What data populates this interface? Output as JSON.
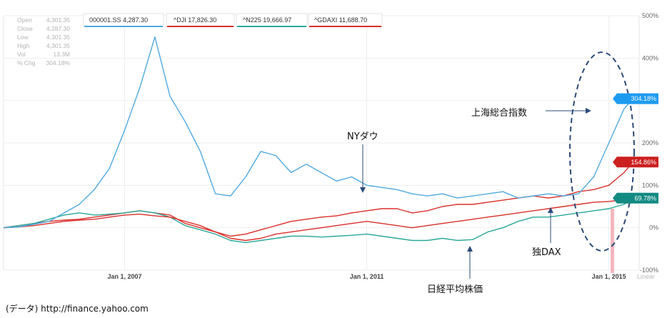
{
  "stats": [
    {
      "label": "Open",
      "value": "4,301.35"
    },
    {
      "label": "Close",
      "value": "4,287.30"
    },
    {
      "label": "Low",
      "value": "4,301.35"
    },
    {
      "label": "High",
      "value": "4,301.35"
    },
    {
      "label": "Vol",
      "value": "13.3M"
    },
    {
      "label": "% Chg",
      "value": "304.18%"
    }
  ],
  "legend": [
    {
      "text": "000001.SS 4,287.30",
      "color": "#4fa9e0"
    },
    {
      "text": "^DJI 17,826.30",
      "color": "#d9302a"
    },
    {
      "text": "^N225 19,666.97",
      "color": "#2aa89a"
    },
    {
      "text": "^GDAXI 11,688.70",
      "color": "#d9302a"
    }
  ],
  "scale_label": "Linear",
  "annotations": {
    "shanghai": "上海総合指数",
    "nydow": "NYダウ",
    "dax": "独DAX",
    "nikkei": "日経平均株価"
  },
  "source": "(データ) http://finance.yahoo.com",
  "colors": {
    "shanghai": "#4fa9e0",
    "dji": "#d9302a",
    "n225": "#2aa89a",
    "gdaxi": "#d9302a",
    "marker": "#f4b6be",
    "ellipse": "#2b4a7a"
  },
  "chart_data": {
    "type": "line",
    "x": [
      2005.0,
      2005.25,
      2005.5,
      2005.75,
      2006.0,
      2006.25,
      2006.5,
      2006.75,
      2007.0,
      2007.25,
      2007.5,
      2007.75,
      2008.0,
      2008.25,
      2008.5,
      2008.75,
      2009.0,
      2009.25,
      2009.5,
      2009.75,
      2010.0,
      2010.25,
      2010.5,
      2010.75,
      2011.0,
      2011.25,
      2011.5,
      2011.75,
      2012.0,
      2012.25,
      2012.5,
      2012.75,
      2013.0,
      2013.25,
      2013.5,
      2013.75,
      2014.0,
      2014.25,
      2014.5,
      2014.75,
      2015.0,
      2015.25,
      2015.4
    ],
    "xticks": [
      "Jan 1, 2007",
      "Jan 1, 2011",
      "Jan 1, 2015"
    ],
    "xtick_values": [
      2007.0,
      2011.0,
      2015.0
    ],
    "yticks": [
      "500%",
      "400%",
      "300%",
      "200%",
      "100%",
      "0%",
      "-100%"
    ],
    "ytick_values": [
      500,
      400,
      300,
      200,
      100,
      0,
      -100
    ],
    "ylim": [
      -100,
      500
    ],
    "grid": true,
    "legend_position": "top",
    "series": [
      {
        "name": "000001.SS",
        "end_label": "304.18%",
        "values": [
          0,
          2,
          8,
          15,
          35,
          55,
          90,
          140,
          230,
          330,
          450,
          310,
          250,
          180,
          80,
          75,
          120,
          180,
          170,
          130,
          150,
          130,
          110,
          120,
          100,
          95,
          90,
          80,
          75,
          80,
          70,
          75,
          80,
          85,
          70,
          75,
          80,
          75,
          80,
          120,
          200,
          280,
          304.18
        ]
      },
      {
        "name": "^DJI",
        "end_label": "154.86%",
        "values": [
          0,
          2,
          5,
          10,
          15,
          18,
          20,
          25,
          30,
          32,
          28,
          25,
          15,
          5,
          -10,
          -20,
          -15,
          -5,
          5,
          15,
          20,
          25,
          28,
          35,
          40,
          45,
          45,
          35,
          40,
          50,
          55,
          55,
          60,
          65,
          70,
          75,
          70,
          75,
          85,
          90,
          100,
          130,
          154.86
        ]
      },
      {
        "name": "^N225",
        "values": [
          0,
          5,
          10,
          20,
          30,
          35,
          30,
          32,
          35,
          40,
          35,
          25,
          5,
          -5,
          -15,
          -30,
          -35,
          -30,
          -25,
          -20,
          -20,
          -22,
          -20,
          -18,
          -15,
          -20,
          -25,
          -30,
          -30,
          -25,
          -30,
          -28,
          -10,
          0,
          15,
          25,
          25,
          30,
          35,
          40,
          45,
          55,
          69.78
        ]
      },
      {
        "name": "^GDAXI",
        "values": [
          0,
          5,
          10,
          15,
          18,
          20,
          25,
          30,
          35,
          40,
          35,
          30,
          10,
          0,
          -10,
          -25,
          -30,
          -25,
          -15,
          -10,
          -5,
          0,
          5,
          10,
          15,
          10,
          5,
          0,
          5,
          10,
          15,
          20,
          25,
          30,
          35,
          40,
          45,
          50,
          55,
          60,
          62,
          66,
          67
        ]
      }
    ],
    "end_labels": [
      {
        "text": "304.18%",
        "value": 304.18,
        "color": "#1d9bf0"
      },
      {
        "text": "154.86%",
        "value": 154.86,
        "color": "#cc1f1f"
      },
      {
        "text": "69.78%",
        "value": 69.78,
        "color": "#138a82"
      }
    ]
  }
}
